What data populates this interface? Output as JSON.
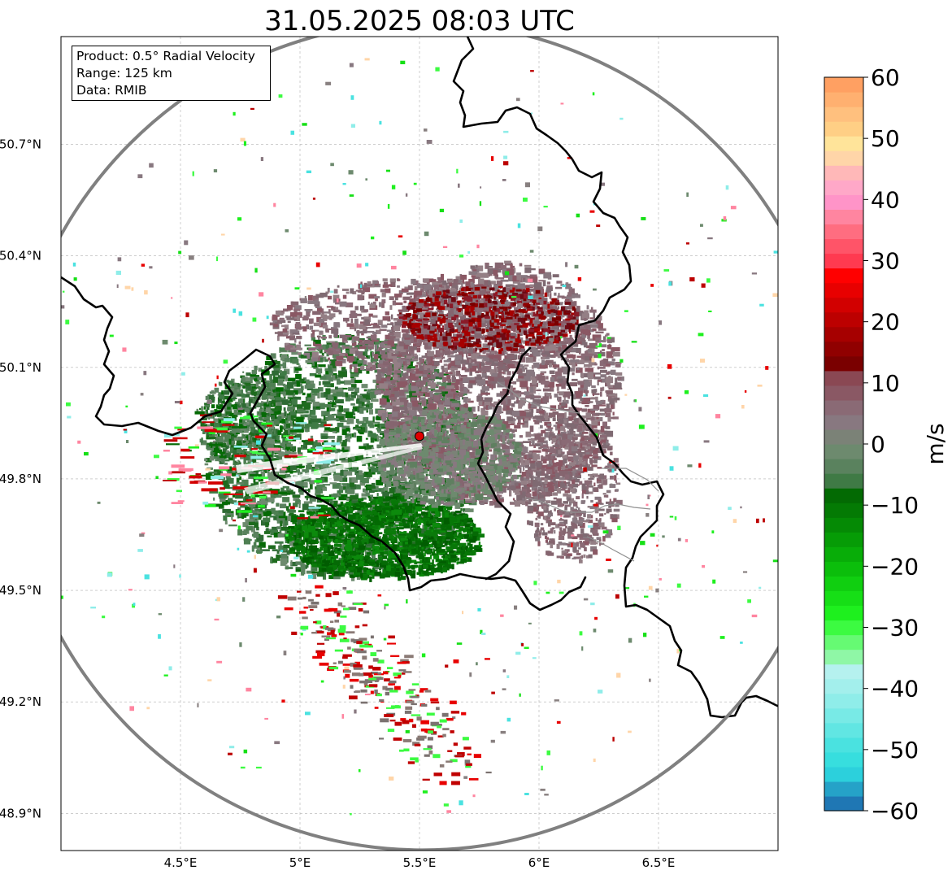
{
  "map": {
    "title": "31.05.2025 08:03 UTC",
    "info": {
      "product": "Product: 0.5° Radial Velocity",
      "range": "Range: 125 km",
      "source": "Data: RMIB"
    },
    "radar_site": {
      "lon": 5.5,
      "lat": 49.915
    },
    "extent": {
      "lon": [
        4.0,
        7.0
      ],
      "lat": [
        48.8,
        50.99
      ]
    },
    "lon_ticks": [
      {
        "value": 4.5,
        "label": "4.5°E"
      },
      {
        "value": 5.0,
        "label": "5°E"
      },
      {
        "value": 5.5,
        "label": "5.5°E"
      },
      {
        "value": 6.0,
        "label": "6°E"
      },
      {
        "value": 6.5,
        "label": "6.5°E"
      }
    ],
    "lat_ticks": [
      {
        "value": 50.7,
        "label": "50.7°N"
      },
      {
        "value": 50.4,
        "label": "50.4°N"
      },
      {
        "value": 50.1,
        "label": "50.1°N"
      },
      {
        "value": 49.8,
        "label": "49.8°N"
      },
      {
        "value": 49.5,
        "label": "49.5°N"
      },
      {
        "value": 49.2,
        "label": "49.2°N"
      },
      {
        "value": 48.9,
        "label": "48.9°N"
      }
    ],
    "range_ring_color": "#808080",
    "border_color": "#000000"
  },
  "colorbar": {
    "unit": "m/s",
    "vmin": -60,
    "vmax": 60,
    "ticks": [
      {
        "value": 60,
        "label": "60"
      },
      {
        "value": 50,
        "label": "50"
      },
      {
        "value": 40,
        "label": "40"
      },
      {
        "value": 30,
        "label": "30"
      },
      {
        "value": 20,
        "label": "20"
      },
      {
        "value": 10,
        "label": "10"
      },
      {
        "value": 0,
        "label": "0"
      },
      {
        "value": -10,
        "label": "−10"
      },
      {
        "value": -20,
        "label": "−20"
      },
      {
        "value": -30,
        "label": "−30"
      },
      {
        "value": -40,
        "label": "−40"
      },
      {
        "value": -50,
        "label": "−50"
      },
      {
        "value": -60,
        "label": "−60"
      }
    ],
    "colors": [
      "#1f77b4",
      "#25a2c8",
      "#2cd0dc",
      "#37dede",
      "#4ae2e0",
      "#61e6e3",
      "#78eae6",
      "#8fede9",
      "#a3efec",
      "#b5f1ef",
      "#8ff7a6",
      "#66fa73",
      "#3cfb41",
      "#1ef01e",
      "#16df16",
      "#10cf10",
      "#0bbe0b",
      "#08ad08",
      "#069c06",
      "#058a05",
      "#047a04",
      "#036a03",
      "#3f7a45",
      "#5a825e",
      "#6d8a6e",
      "#7b8277",
      "#887880",
      "#8a6a75",
      "#8a5864",
      "#8a4853",
      "#7a0000",
      "#900000",
      "#a60000",
      "#bc0000",
      "#d20000",
      "#e80000",
      "#ff0000",
      "#ff3a50",
      "#ff5468",
      "#ff6d80",
      "#ff85a0",
      "#ff94c8",
      "#ffa8c8",
      "#ffb8b8",
      "#ffd5a8",
      "#ffe49a",
      "#ffcf85",
      "#ffc07e",
      "#ffb070",
      "#ffa062"
    ]
  }
}
